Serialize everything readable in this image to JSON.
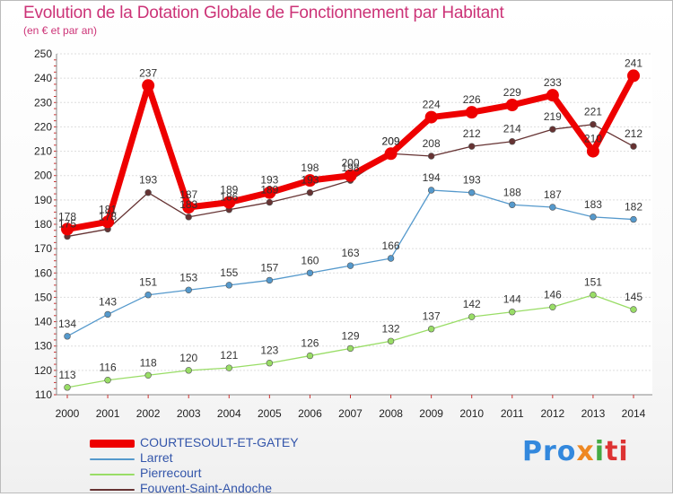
{
  "header": {
    "title": "Evolution de la Dotation Globale de Fonctionnement par Habitant",
    "subtitle": "(en € et par an)"
  },
  "logo": {
    "p1": "Pro",
    "p2": "x",
    "p3": "i",
    "p4": "ti"
  },
  "chart_data": {
    "type": "line",
    "title": "Evolution de la Dotation Globale de Fonctionnement par Habitant",
    "subtitle": "(en € et par an)",
    "xlabel": "",
    "ylabel": "",
    "ylim": [
      110,
      250
    ],
    "yticks": [
      110,
      120,
      130,
      140,
      150,
      160,
      170,
      180,
      190,
      200,
      210,
      220,
      230,
      240,
      250
    ],
    "x": [
      2000,
      2001,
      2002,
      2003,
      2004,
      2005,
      2006,
      2007,
      2008,
      2009,
      2010,
      2011,
      2012,
      2013,
      2014
    ],
    "grid": "horizontal",
    "legend_position": "bottom-left",
    "series": [
      {
        "name": "COURTESOULT-ET-GATEY",
        "color": "#ee0000",
        "emphasis": "thick",
        "values": [
          178,
          181,
          237,
          187,
          189,
          193,
          198,
          200,
          209,
          224,
          226,
          229,
          233,
          210,
          241
        ],
        "labels": [
          "178",
          "181",
          "237",
          "187",
          "189",
          "193",
          "198",
          "200",
          "209",
          "224",
          "226",
          "229",
          "233",
          "210",
          "241"
        ]
      },
      {
        "name": "Larret",
        "color": "#5599cc",
        "values": [
          134,
          143,
          151,
          153,
          155,
          157,
          160,
          163,
          166,
          194,
          193,
          188,
          187,
          183,
          182
        ],
        "labels": [
          "134",
          "143",
          "151",
          "153",
          "155",
          "157",
          "160",
          "163",
          "166",
          "194",
          "193",
          "188",
          "187",
          "183",
          "182"
        ]
      },
      {
        "name": "Pierrecourt",
        "color": "#99dd66",
        "values": [
          113,
          116,
          118,
          120,
          121,
          123,
          126,
          129,
          132,
          137,
          142,
          144,
          146,
          151,
          145
        ],
        "labels": [
          "113",
          "116",
          "118",
          "120",
          "121",
          "123",
          "126",
          "129",
          "132",
          "137",
          "142",
          "144",
          "146",
          "151",
          "145"
        ]
      },
      {
        "name": "Fouvent-Saint-Andoche",
        "color": "#663333",
        "values": [
          175,
          178,
          193,
          183,
          186,
          189,
          193,
          198,
          209,
          208,
          212,
          214,
          219,
          221,
          212
        ],
        "labels": [
          "175",
          "178",
          "193",
          "183",
          "186",
          "189",
          "193",
          "198",
          "209",
          "208",
          "212",
          "214",
          "219",
          "221",
          "212"
        ]
      }
    ]
  }
}
